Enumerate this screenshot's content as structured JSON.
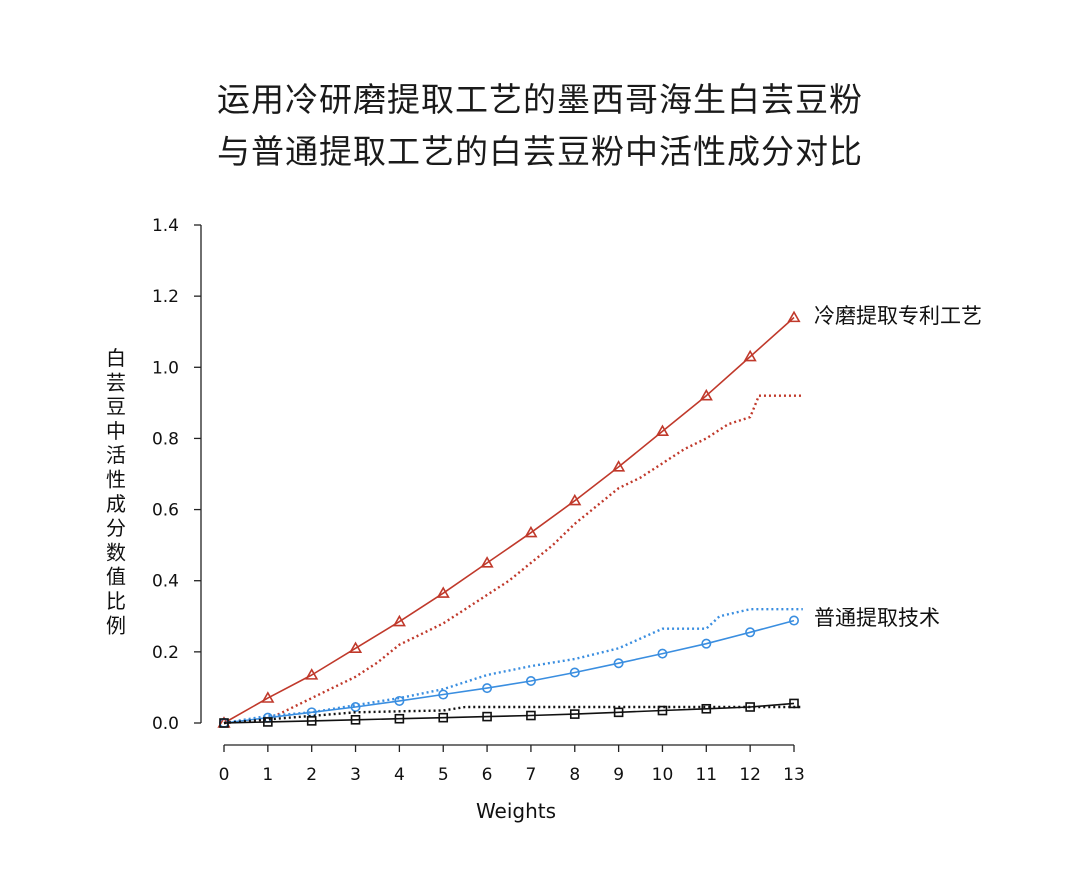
{
  "chart_data": {
    "type": "line",
    "title": [
      "运用冷研磨提取工艺的墨西哥海生白芸豆粉",
      "与普通提取工艺的白芸豆粉中活性成分对比"
    ],
    "xlabel": "Weights",
    "ylabel": "白芸豆中活性成分数值比例",
    "xlim": [
      0,
      13
    ],
    "ylim": [
      0,
      1.4
    ],
    "x_ticks": [
      "0",
      "1",
      "2",
      "3",
      "4",
      "5",
      "6",
      "7",
      "8",
      "9",
      "10",
      "11",
      "12",
      "13"
    ],
    "y_ticks": [
      "0.0",
      "0.2",
      "0.4",
      "0.6",
      "0.8",
      "1.0",
      "1.2",
      "1.4"
    ],
    "grid": false,
    "series": [
      {
        "name": "冷磨提取专利工艺",
        "color": "#c0392b",
        "style": "solid",
        "marker": "triangle",
        "x": [
          0,
          1,
          2,
          3,
          4,
          5,
          6,
          7,
          8,
          9,
          10,
          11,
          12,
          13
        ],
        "values": [
          0.0,
          0.07,
          0.135,
          0.21,
          0.285,
          0.365,
          0.45,
          0.535,
          0.625,
          0.72,
          0.82,
          0.92,
          1.03,
          1.14
        ]
      },
      {
        "color": "#c0392b",
        "style": "dotted",
        "marker": "none",
        "x": [
          0,
          1,
          1.5,
          2,
          2.5,
          3,
          3.5,
          4,
          4.5,
          5,
          5.5,
          6,
          6.5,
          7,
          7.5,
          8,
          8.5,
          9,
          9.5,
          10,
          10.5,
          11,
          11.5,
          12,
          12.2,
          13.2
        ],
        "values": [
          0.0,
          0.01,
          0.04,
          0.07,
          0.1,
          0.13,
          0.17,
          0.22,
          0.25,
          0.28,
          0.32,
          0.36,
          0.4,
          0.45,
          0.5,
          0.56,
          0.61,
          0.66,
          0.69,
          0.73,
          0.77,
          0.8,
          0.84,
          0.86,
          0.92,
          0.92
        ]
      },
      {
        "name": "普通提取技术",
        "color": "#3a8ee0",
        "style": "solid",
        "marker": "circle",
        "x": [
          0,
          1,
          2,
          3,
          4,
          5,
          6,
          7,
          8,
          9,
          10,
          11,
          12,
          13
        ],
        "values": [
          0.0,
          0.015,
          0.03,
          0.045,
          0.062,
          0.08,
          0.098,
          0.118,
          0.142,
          0.168,
          0.195,
          0.223,
          0.255,
          0.288
        ]
      },
      {
        "color": "#3a8ee0",
        "style": "dotted",
        "marker": "none",
        "x": [
          0,
          1,
          2,
          3,
          4,
          5,
          6,
          7,
          8,
          9,
          10,
          11,
          11.3,
          12,
          13.2
        ],
        "values": [
          0.0,
          0.02,
          0.03,
          0.05,
          0.07,
          0.095,
          0.135,
          0.16,
          0.18,
          0.21,
          0.265,
          0.265,
          0.3,
          0.32,
          0.32
        ]
      },
      {
        "color": "#111111",
        "style": "solid",
        "marker": "square",
        "x": [
          0,
          1,
          2,
          3,
          4,
          5,
          6,
          7,
          8,
          9,
          10,
          11,
          12,
          13
        ],
        "values": [
          0.0,
          0.003,
          0.006,
          0.009,
          0.012,
          0.015,
          0.018,
          0.021,
          0.025,
          0.03,
          0.035,
          0.04,
          0.045,
          0.055
        ]
      },
      {
        "color": "#111111",
        "style": "dotted",
        "marker": "none",
        "x": [
          0,
          1,
          2,
          3,
          4,
          5,
          5.5,
          6,
          7,
          8,
          9,
          10,
          11,
          12,
          13.2
        ],
        "values": [
          0.0,
          0.01,
          0.02,
          0.03,
          0.033,
          0.035,
          0.045,
          0.045,
          0.045,
          0.045,
          0.045,
          0.045,
          0.045,
          0.045,
          0.045
        ]
      }
    ]
  }
}
